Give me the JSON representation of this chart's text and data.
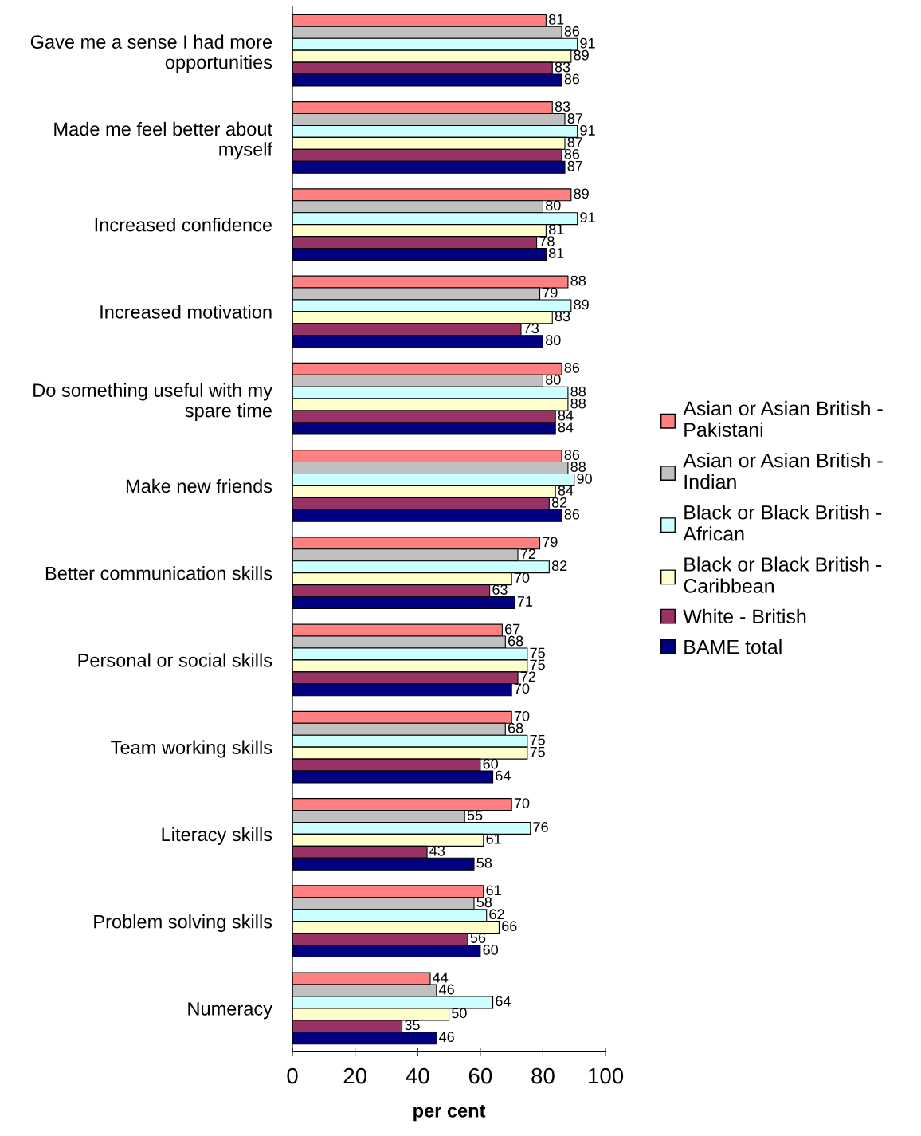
{
  "chart_data": {
    "type": "bar",
    "orientation": "horizontal",
    "xlabel": "per cent",
    "categories": [
      "Gave me a sense I had more opportunities",
      "Made me feel better about myself",
      "Increased confidence",
      "Increased motivation",
      "Do something useful with my spare time",
      "Make new friends",
      "Better communication skills",
      "Personal or social skills",
      "Team working skills",
      "Literacy skills",
      "Problem solving skills",
      "Numeracy"
    ],
    "series": [
      {
        "name": "Asian or Asian British - Pakistani",
        "color": "#ff8080",
        "values": [
          81,
          83,
          89,
          88,
          86,
          86,
          79,
          67,
          70,
          70,
          61,
          44
        ]
      },
      {
        "name": "Asian or Asian British - Indian",
        "color": "#c0c0c0",
        "values": [
          86,
          87,
          80,
          79,
          80,
          88,
          72,
          68,
          68,
          55,
          58,
          46
        ]
      },
      {
        "name": "Black or Black British - African",
        "color": "#ccffff",
        "values": [
          91,
          91,
          91,
          89,
          88,
          90,
          82,
          75,
          75,
          76,
          62,
          64
        ]
      },
      {
        "name": "Black or Black British - Caribbean",
        "color": "#ffffcc",
        "values": [
          89,
          87,
          81,
          83,
          88,
          84,
          70,
          75,
          75,
          61,
          66,
          50
        ]
      },
      {
        "name": "White - British",
        "color": "#993366",
        "values": [
          83,
          86,
          78,
          73,
          84,
          82,
          63,
          72,
          60,
          43,
          56,
          35
        ]
      },
      {
        "name": "BAME total",
        "color": "#000080",
        "values": [
          86,
          87,
          81,
          80,
          84,
          86,
          71,
          70,
          64,
          58,
          60,
          46
        ]
      }
    ],
    "xlim": [
      0,
      100
    ],
    "xticks": [
      0,
      20,
      40,
      60,
      80,
      100
    ],
    "data_labels": true,
    "grid": false,
    "legend": "right"
  }
}
